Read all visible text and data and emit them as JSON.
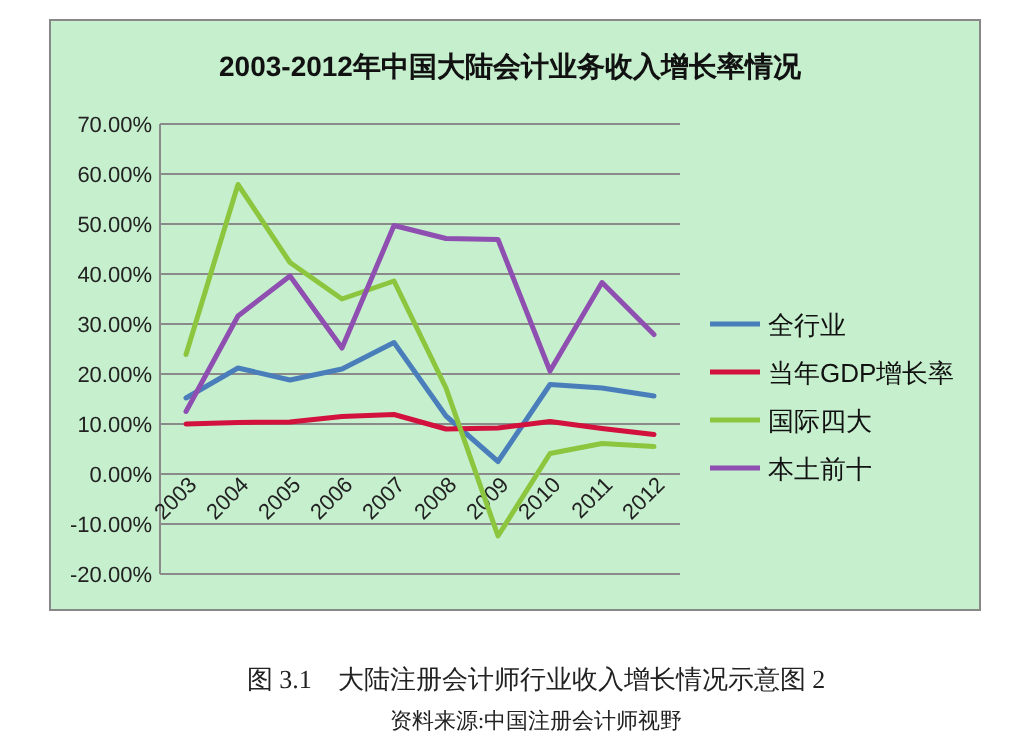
{
  "chart_data": {
    "type": "line",
    "title": "2003-2012年中国大陆会计业务收入增长率情况",
    "categories": [
      "2003",
      "2004",
      "2005",
      "2006",
      "2007",
      "2008",
      "2009",
      "2010",
      "2011",
      "2012"
    ],
    "series": [
      {
        "name": "全行业",
        "color": "#4a7ebb",
        "values": [
          15.2,
          21.2,
          18.8,
          21.0,
          26.3,
          11.6,
          2.5,
          17.9,
          17.2,
          15.6
        ]
      },
      {
        "name": "当年GDP增长率",
        "color": "#d2113d",
        "values": [
          10.0,
          10.3,
          10.4,
          11.5,
          11.9,
          9.0,
          9.2,
          10.5,
          9.1,
          7.9
        ]
      },
      {
        "name": "国际四大",
        "color": "#8cc63e",
        "values": [
          23.9,
          57.9,
          42.3,
          35.0,
          38.6,
          17.2,
          -12.4,
          4.1,
          6.1,
          5.5
        ]
      },
      {
        "name": "本土前十",
        "color": "#8e4fb0",
        "values": [
          12.5,
          31.6,
          39.6,
          25.2,
          49.7,
          47.1,
          46.9,
          20.6,
          38.3,
          27.9
        ]
      }
    ],
    "ylim": [
      -20,
      70
    ],
    "yticks": [
      {
        "value": -20,
        "label": "-20.00%"
      },
      {
        "value": -10,
        "label": "-10.00%"
      },
      {
        "value": 0,
        "label": "0.00%"
      },
      {
        "value": 10,
        "label": "10.00%"
      },
      {
        "value": 20,
        "label": "20.00%"
      },
      {
        "value": 30,
        "label": "30.00%"
      },
      {
        "value": 40,
        "label": "40.00%"
      },
      {
        "value": 50,
        "label": "50.00%"
      },
      {
        "value": 60,
        "label": "60.00%"
      },
      {
        "value": 70,
        "label": "70.00%"
      }
    ],
    "grid": "y",
    "legend": "right",
    "marker": "none",
    "line_style": "solid",
    "annotations": [
      "图 3.1　大陆注册会计师行业收入增长情况示意图 2",
      "资料来源:中国注册会计师视野"
    ]
  }
}
